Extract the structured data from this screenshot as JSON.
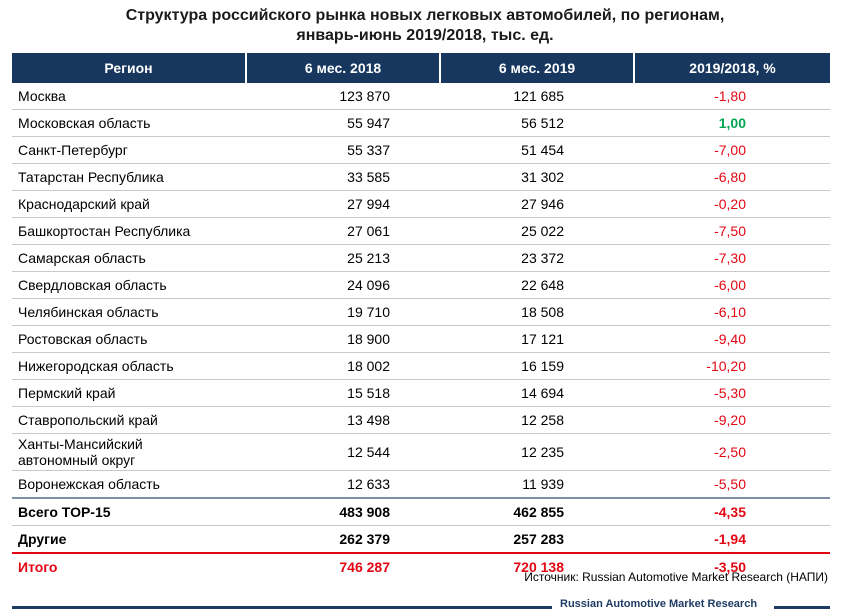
{
  "title_line1": "Структура российского рынка новых легковых автомобилей, по регионам,",
  "title_line2": "январь-июнь 2019/2018, тыс. ед.",
  "headers": [
    "Регион",
    "6 мес. 2018",
    "6 мес. 2019",
    "2019/2018, %"
  ],
  "rows": [
    {
      "region": "Москва",
      "y2018": "123 870",
      "y2019": "121 685",
      "pct": "-1,80"
    },
    {
      "region": "Московская область",
      "y2018": "55 947",
      "y2019": "56 512",
      "pct": "1,00"
    },
    {
      "region": "Санкт-Петербург",
      "y2018": "55 337",
      "y2019": "51 454",
      "pct": "-7,00"
    },
    {
      "region": "Татарстан Республика",
      "y2018": "33 585",
      "y2019": "31 302",
      "pct": "-6,80"
    },
    {
      "region": "Краснодарский край",
      "y2018": "27 994",
      "y2019": "27 946",
      "pct": "-0,20"
    },
    {
      "region": "Башкортостан Республика",
      "y2018": "27 061",
      "y2019": "25 022",
      "pct": "-7,50"
    },
    {
      "region": "Самарская область",
      "y2018": "25 213",
      "y2019": "23 372",
      "pct": "-7,30"
    },
    {
      "region": "Свердловская область",
      "y2018": "24 096",
      "y2019": "22 648",
      "pct": "-6,00"
    },
    {
      "region": "Челябинская область",
      "y2018": "19 710",
      "y2019": "18 508",
      "pct": "-6,10"
    },
    {
      "region": "Ростовская область",
      "y2018": "18 900",
      "y2019": "17 121",
      "pct": "-9,40"
    },
    {
      "region": "Нижегородская область",
      "y2018": "18 002",
      "y2019": "16 159",
      "pct": "-10,20"
    },
    {
      "region": "Пермский край",
      "y2018": "15 518",
      "y2019": "14 694",
      "pct": "-5,30"
    },
    {
      "region": "Ставропольский край",
      "y2018": "13 498",
      "y2019": "12 258",
      "pct": "-9,20"
    },
    {
      "region_line1": "Ханты-Мансийский",
      "region_line2": "автономный округ",
      "y2018": "12 544",
      "y2019": "12 235",
      "pct": "-2,50"
    },
    {
      "region": "Воронежская область",
      "y2018": "12 633",
      "y2019": "11 939",
      "pct": "-5,50"
    }
  ],
  "top15": {
    "region": "Всего TOP-15",
    "y2018": "483 908",
    "y2019": "462 855",
    "pct": "-4,35"
  },
  "others": {
    "region": "Другие",
    "y2018": "262 379",
    "y2019": "257 283",
    "pct": "-1,94"
  },
  "total": {
    "region": "Итого",
    "y2018": "746 287",
    "y2019": "720 138",
    "pct": "-3,50"
  },
  "source": "Источник: Russian Automotive Market Research (НАПИ)",
  "footer": "Russian Automotive Market Research",
  "colors": {
    "header_bg": "#17375e",
    "negative": "#e30613",
    "positive": "#00a651"
  }
}
